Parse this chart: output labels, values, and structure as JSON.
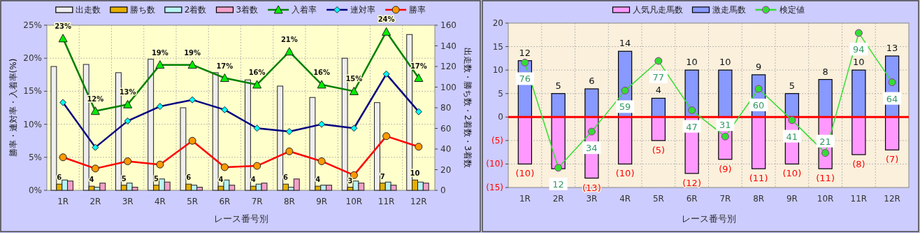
{
  "chart_data": [
    {
      "type": "bar",
      "categories": [
        "1R",
        "2R",
        "3R",
        "4R",
        "5R",
        "6R",
        "7R",
        "8R",
        "9R",
        "10R",
        "11R",
        "12R"
      ],
      "xlabel": "レース番号別",
      "ylabel": "勝率・連対率・入着率(%)",
      "y2label": "出走数・勝ち数・2着数・3着数",
      "ylim": [
        0,
        25
      ],
      "yticks": [
        {
          "value": 0,
          "label": "0%"
        },
        {
          "value": 5,
          "label": "5%"
        },
        {
          "value": 10,
          "label": "10%"
        },
        {
          "value": 15,
          "label": "15%"
        },
        {
          "value": 20,
          "label": "20%"
        },
        {
          "value": 25,
          "label": "25%"
        }
      ],
      "y2lim": [
        0,
        160
      ],
      "y2ticks": [
        0,
        20,
        40,
        60,
        80,
        100,
        120,
        140,
        160
      ],
      "grid": true,
      "legend": "top",
      "series": [
        {
          "name": "出走数",
          "color": "#eeeeee",
          "axis": "y2",
          "values": [
            120,
            122,
            114,
            127,
            80,
            114,
            107,
            101,
            90,
            128,
            85,
            151
          ]
        },
        {
          "name": "勝ち数",
          "color": "#e6b000",
          "axis": "y2",
          "values": [
            6,
            4,
            5,
            5,
            6,
            4,
            4,
            6,
            4,
            3,
            7,
            10
          ],
          "value_labels": [
            "6",
            "4",
            "5",
            "5",
            "6",
            "4",
            "4",
            "6",
            "4",
            "3",
            "7",
            "10"
          ]
        },
        {
          "name": "2着数",
          "color": "#b8f4f4",
          "axis": "y2",
          "values": [
            10,
            3,
            7,
            11,
            5,
            10,
            6,
            3,
            5,
            9,
            8,
            8
          ]
        },
        {
          "name": "3着数",
          "color": "#f4a0c8",
          "axis": "y2",
          "values": [
            9,
            7,
            3,
            8,
            3,
            5,
            7,
            11,
            5,
            7,
            5,
            7
          ]
        },
        {
          "name": "入着率",
          "type": "line",
          "color": "#008000",
          "marker": "triangle",
          "colors": [
            "#00ee00",
            "#00ee00",
            "#00ee00",
            "#00ee00",
            "#00ee00",
            "#00ee00",
            "#00ee00",
            "#00ee00",
            "#00ee00",
            "#00ee00",
            "#00ee00",
            "#00ee00"
          ],
          "values": [
            23,
            12,
            13,
            19,
            19,
            17,
            16,
            21,
            16,
            15,
            24,
            17
          ],
          "value_labels": [
            "23%",
            "12%",
            "13%",
            "19%",
            "19%",
            "17%",
            "16%",
            "21%",
            "16%",
            "15%",
            "24%",
            "17%"
          ]
        },
        {
          "name": "連対率",
          "type": "line",
          "color": "#000080",
          "marker": "diamond",
          "colors": [
            "#00ffff",
            "#00ffff",
            "#00ffff",
            "#00ffff",
            "#00ffff",
            "#00ffff",
            "#00ffff",
            "#00ffff",
            "#00ffff",
            "#00ffff",
            "#00ffff",
            "#00ffff"
          ],
          "values": [
            13.3,
            6.5,
            10.5,
            12.7,
            13.7,
            12.2,
            9.4,
            8.9,
            10.0,
            9.4,
            17.6,
            11.9
          ]
        },
        {
          "name": "勝率",
          "type": "line",
          "color": "#ff0000",
          "marker": "circle",
          "colors": [
            "#ff9900",
            "#ff9900",
            "#ff9900",
            "#ff9900",
            "#ff9900",
            "#ff9900",
            "#ff9900",
            "#ff9900",
            "#ff9900",
            "#ff9900",
            "#ff9900",
            "#ff9900"
          ],
          "values": [
            5.0,
            3.3,
            4.4,
            3.9,
            7.5,
            3.5,
            3.7,
            5.9,
            4.4,
            2.3,
            8.2,
            6.6
          ]
        }
      ]
    },
    {
      "type": "bar",
      "stacked": true,
      "categories": [
        "1R",
        "2R",
        "3R",
        "4R",
        "5R",
        "6R",
        "7R",
        "8R",
        "9R",
        "10R",
        "11R",
        "12R"
      ],
      "xlabel": "レース番号別",
      "ylim": [
        -15,
        20
      ],
      "y2lim": [
        0,
        100
      ],
      "yticks": [
        {
          "value": -15,
          "label": "(15)"
        },
        {
          "value": -10,
          "label": "(10)"
        },
        {
          "value": -5,
          "label": "(5)"
        },
        0,
        5,
        10,
        15,
        20
      ],
      "grid": true,
      "legend": "top",
      "ref_lines": [
        {
          "axis": "y",
          "value": 0,
          "color": "#ff0000"
        }
      ],
      "series": [
        {
          "name": "人気凡走馬数",
          "color": "#ff99ff",
          "values": [
            -10,
            -11,
            -13,
            -10,
            -5,
            -12,
            -9,
            -11,
            -10,
            -11,
            -8,
            -7
          ],
          "value_labels": [
            "(10)",
            null,
            "(13)",
            "(10)",
            "(5)",
            "(12)",
            "(9)",
            "(11)",
            "(10)",
            "(11)",
            "(8)",
            "(7)"
          ]
        },
        {
          "name": "激走馬数",
          "color": "#8899ff",
          "values": [
            12,
            5,
            6,
            14,
            4,
            10,
            10,
            9,
            5,
            8,
            10,
            13
          ],
          "value_labels": [
            "12",
            "5",
            "6",
            "14",
            "4",
            "10",
            "10",
            "9",
            "5",
            "8",
            "10",
            "13"
          ]
        },
        {
          "name": "検定値",
          "type": "line",
          "axis": "y2",
          "color": "#33dd33",
          "marker": "circle",
          "values": [
            76,
            12,
            34,
            59,
            77,
            47,
            31,
            60,
            41,
            21,
            94,
            64
          ],
          "value_labels": [
            "76",
            "12",
            "34",
            "59",
            "77",
            "47",
            "31",
            "60",
            "41",
            "21",
            "94",
            "64"
          ]
        }
      ]
    }
  ]
}
